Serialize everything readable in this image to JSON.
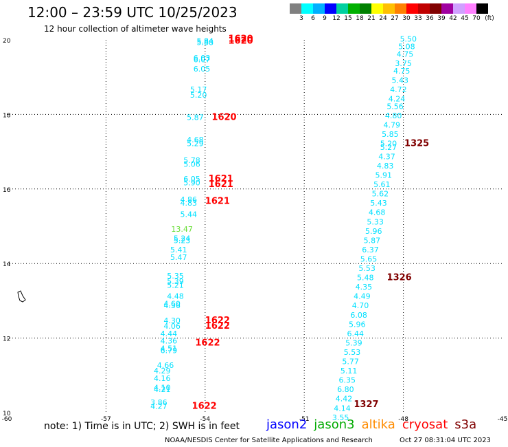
{
  "header": {
    "title": "12:00 – 23:59 UTC 10/25/2023",
    "subtitle": "12 hour collection of altimeter wave heights"
  },
  "legend": {
    "colors": [
      "#808080",
      "#00ffff",
      "#00b0ff",
      "#0000ff",
      "#00d0a0",
      "#00b000",
      "#008000",
      "#ffff00",
      "#ffc000",
      "#ff8000",
      "#ff0000",
      "#c00000",
      "#800000",
      "#a000a0",
      "#d0a0ff",
      "#ff80ff",
      "#000000"
    ],
    "labels": [
      "3",
      "6",
      "9",
      "12",
      "15",
      "18",
      "21",
      "24",
      "27",
      "30",
      "33",
      "36",
      "39",
      "42",
      "45",
      "70",
      "(ft)"
    ]
  },
  "footer": {
    "note": "note: 1) Time is in UTC; 2) SWH is in feet",
    "credit": "NOAA/NESDIS Center for Satellite Applications and Research",
    "timestamp": "Oct 27 08:31:04 UTC 2023",
    "satellites": [
      {
        "name": "jason2",
        "color": "#0000ff"
      },
      {
        "name": "jason3",
        "color": "#00aa00"
      },
      {
        "name": "altika",
        "color": "#ff8c00"
      },
      {
        "name": "cryosat",
        "color": "#ff0000"
      },
      {
        "name": "s3a",
        "color": "#800000"
      }
    ]
  },
  "chart_data": {
    "type": "scatter",
    "title": "12:00 – 23:59 UTC 10/25/2023",
    "xlim": [
      -60,
      -45
    ],
    "ylim": [
      10,
      20
    ],
    "xticks": [
      "-60",
      "-57",
      "-54",
      "-51",
      "-48",
      "-45"
    ],
    "yticks": [
      "10",
      "12",
      "14",
      "16",
      "18",
      "20"
    ],
    "grid": true,
    "west_track": [
      {
        "x": -54.0,
        "y": 19.9,
        "v": "5.84"
      },
      {
        "x": -54.0,
        "y": 19.86,
        "v": "5.88"
      },
      {
        "x": -54.1,
        "y": 19.45,
        "v": "6.03"
      },
      {
        "x": -54.1,
        "y": 19.4,
        "v": "6.07"
      },
      {
        "x": -54.1,
        "y": 19.15,
        "v": "6.05"
      },
      {
        "x": -54.2,
        "y": 18.6,
        "v": "5.17"
      },
      {
        "x": -54.2,
        "y": 18.45,
        "v": "5.20"
      },
      {
        "x": -54.3,
        "y": 17.85,
        "v": "5.87"
      },
      {
        "x": -54.3,
        "y": 17.25,
        "v": "4.68"
      },
      {
        "x": -54.3,
        "y": 17.15,
        "v": "5.29"
      },
      {
        "x": -54.4,
        "y": 16.7,
        "v": "5.78"
      },
      {
        "x": -54.4,
        "y": 16.6,
        "v": "5.06"
      },
      {
        "x": -54.4,
        "y": 16.2,
        "v": "6.05"
      },
      {
        "x": -54.4,
        "y": 16.1,
        "v": "5.90"
      },
      {
        "x": -54.5,
        "y": 15.65,
        "v": "4.86"
      },
      {
        "x": -54.5,
        "y": 15.55,
        "v": "4.83"
      },
      {
        "x": -54.5,
        "y": 15.25,
        "v": "5.44"
      },
      {
        "x": -54.7,
        "y": 14.85,
        "v": "13.47"
      },
      {
        "x": -54.7,
        "y": 14.6,
        "v": "5.24"
      },
      {
        "x": -54.7,
        "y": 14.55,
        "v": "5.23"
      },
      {
        "x": -54.8,
        "y": 14.3,
        "v": "5.41"
      },
      {
        "x": -54.8,
        "y": 14.1,
        "v": "5.47"
      },
      {
        "x": -54.9,
        "y": 13.6,
        "v": "5.35"
      },
      {
        "x": -54.9,
        "y": 13.45,
        "v": "5.39"
      },
      {
        "x": -54.9,
        "y": 13.35,
        "v": "5.21"
      },
      {
        "x": -54.9,
        "y": 13.05,
        "v": "4.48"
      },
      {
        "x": -55.0,
        "y": 12.85,
        "v": "4.60"
      },
      {
        "x": -55.0,
        "y": 12.8,
        "v": "4.36"
      },
      {
        "x": -55.0,
        "y": 12.4,
        "v": "4.30"
      },
      {
        "x": -55.0,
        "y": 12.25,
        "v": "4.06"
      },
      {
        "x": -55.1,
        "y": 12.05,
        "v": "4.44"
      },
      {
        "x": -55.1,
        "y": 11.85,
        "v": "4.36"
      },
      {
        "x": -55.1,
        "y": 11.65,
        "v": "4.51"
      },
      {
        "x": -55.1,
        "y": 11.6,
        "v": "6.79"
      },
      {
        "x": -55.2,
        "y": 11.2,
        "v": "4.66"
      },
      {
        "x": -55.3,
        "y": 11.05,
        "v": "4.29"
      },
      {
        "x": -55.3,
        "y": 10.85,
        "v": "4.16"
      },
      {
        "x": -55.3,
        "y": 10.6,
        "v": "4.10"
      },
      {
        "x": -55.3,
        "y": 10.55,
        "v": "4.21"
      },
      {
        "x": -55.4,
        "y": 10.2,
        "v": "3.86"
      },
      {
        "x": -55.4,
        "y": 10.1,
        "v": "4.27"
      }
    ],
    "east_track": [
      {
        "x": -47.85,
        "y": 19.95,
        "v": "5.50"
      },
      {
        "x": -47.9,
        "y": 19.75,
        "v": "5.08"
      },
      {
        "x": -47.95,
        "y": 19.55,
        "v": "4.75"
      },
      {
        "x": -48.0,
        "y": 19.3,
        "v": "3.75"
      },
      {
        "x": -48.05,
        "y": 19.1,
        "v": "4.75"
      },
      {
        "x": -48.1,
        "y": 18.85,
        "v": "5.43"
      },
      {
        "x": -48.15,
        "y": 18.6,
        "v": "4.72"
      },
      {
        "x": -48.2,
        "y": 18.35,
        "v": "4.24"
      },
      {
        "x": -48.25,
        "y": 18.15,
        "v": "5.56"
      },
      {
        "x": -48.3,
        "y": 17.9,
        "v": "4.80"
      },
      {
        "x": -48.35,
        "y": 17.65,
        "v": "4.79"
      },
      {
        "x": -48.4,
        "y": 17.4,
        "v": "5.85"
      },
      {
        "x": -48.45,
        "y": 17.15,
        "v": "5.20"
      },
      {
        "x": -48.45,
        "y": 17.05,
        "v": "5.27"
      },
      {
        "x": -48.5,
        "y": 16.8,
        "v": "4.37"
      },
      {
        "x": -48.55,
        "y": 16.55,
        "v": "4.83"
      },
      {
        "x": -48.6,
        "y": 16.3,
        "v": "5.91"
      },
      {
        "x": -48.65,
        "y": 16.05,
        "v": "5.61"
      },
      {
        "x": -48.7,
        "y": 15.8,
        "v": "5.62"
      },
      {
        "x": -48.75,
        "y": 15.55,
        "v": "5.43"
      },
      {
        "x": -48.8,
        "y": 15.3,
        "v": "4.68"
      },
      {
        "x": -48.85,
        "y": 15.05,
        "v": "5.33"
      },
      {
        "x": -48.9,
        "y": 14.8,
        "v": "5.96"
      },
      {
        "x": -48.95,
        "y": 14.55,
        "v": "5.87"
      },
      {
        "x": -49.0,
        "y": 14.3,
        "v": "6.37"
      },
      {
        "x": -49.05,
        "y": 14.05,
        "v": "5.65"
      },
      {
        "x": -49.1,
        "y": 13.8,
        "v": "5.53"
      },
      {
        "x": -49.15,
        "y": 13.55,
        "v": "5.48"
      },
      {
        "x": -49.2,
        "y": 13.3,
        "v": "4.35"
      },
      {
        "x": -49.25,
        "y": 13.05,
        "v": "4.49"
      },
      {
        "x": -49.3,
        "y": 12.8,
        "v": "4.70"
      },
      {
        "x": -49.35,
        "y": 12.55,
        "v": "6.08"
      },
      {
        "x": -49.4,
        "y": 12.3,
        "v": "5.96"
      },
      {
        "x": -49.45,
        "y": 12.05,
        "v": "6.44"
      },
      {
        "x": -49.5,
        "y": 11.8,
        "v": "5.39"
      },
      {
        "x": -49.55,
        "y": 11.55,
        "v": "5.53"
      },
      {
        "x": -49.6,
        "y": 11.3,
        "v": "5.77"
      },
      {
        "x": -49.65,
        "y": 11.05,
        "v": "5.11"
      },
      {
        "x": -49.7,
        "y": 10.8,
        "v": "6.35"
      },
      {
        "x": -49.75,
        "y": 10.55,
        "v": "6.80"
      },
      {
        "x": -49.8,
        "y": 10.3,
        "v": "4.42"
      },
      {
        "x": -49.85,
        "y": 10.05,
        "v": "4.14"
      },
      {
        "x": -49.9,
        "y": 9.8,
        "v": "3.55"
      }
    ],
    "time_labels": [
      {
        "x": -53.3,
        "y": 19.95,
        "t": "1620",
        "color": "#ff0000"
      },
      {
        "x": -53.3,
        "y": 19.9,
        "t": "1620",
        "color": "#ff0000"
      },
      {
        "x": -53.8,
        "y": 17.85,
        "t": "1620",
        "color": "#ff0000"
      },
      {
        "x": -53.9,
        "y": 16.2,
        "t": "1621",
        "color": "#ff0000"
      },
      {
        "x": -53.9,
        "y": 16.05,
        "t": "1621",
        "color": "#ff0000"
      },
      {
        "x": -54.0,
        "y": 15.6,
        "t": "1621",
        "color": "#ff0000"
      },
      {
        "x": -54.0,
        "y": 12.4,
        "t": "1622",
        "color": "#ff0000"
      },
      {
        "x": -54.0,
        "y": 12.25,
        "t": "1622",
        "color": "#ff0000"
      },
      {
        "x": -54.3,
        "y": 11.8,
        "t": "1622",
        "color": "#ff0000"
      },
      {
        "x": -54.4,
        "y": 10.1,
        "t": "1622",
        "color": "#ff0000"
      },
      {
        "x": -47.97,
        "y": 17.15,
        "t": "1325",
        "color": "#800000"
      },
      {
        "x": -48.5,
        "y": 13.55,
        "t": "1326",
        "color": "#800000"
      },
      {
        "x": -49.5,
        "y": 10.15,
        "t": "1327",
        "color": "#800000"
      }
    ],
    "point_color": "#00e0ff",
    "highlight_color": "#66dd33"
  }
}
